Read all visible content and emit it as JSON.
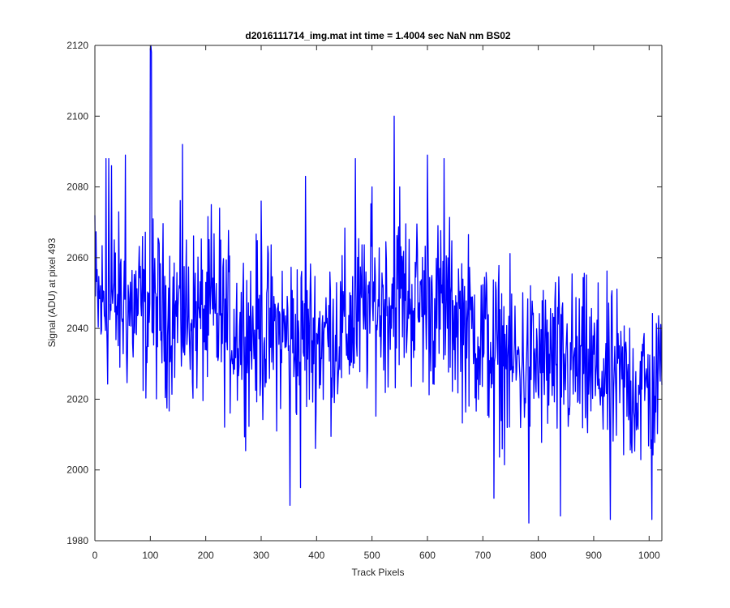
{
  "chart_data": {
    "type": "line",
    "title": "d2016111714_img.mat int time = 1.4004 sec  NaN nm BS02",
    "xlabel": "Track Pixels",
    "ylabel": "Signal (ADU) at pixel 493",
    "xlim": [
      0,
      1023
    ],
    "ylim": [
      1980,
      2120
    ],
    "xticks": [
      0,
      100,
      200,
      300,
      400,
      500,
      600,
      700,
      800,
      900,
      1000
    ],
    "yticks": [
      1980,
      2000,
      2020,
      2040,
      2060,
      2080,
      2100,
      2120
    ],
    "line_color": "#0000ff",
    "series": [
      {
        "name": "signal",
        "n_points": 1024,
        "mean_profile": [
          [
            0,
            2047
          ],
          [
            50,
            2046
          ],
          [
            100,
            2045
          ],
          [
            150,
            2044
          ],
          [
            200,
            2043
          ],
          [
            250,
            2040
          ],
          [
            300,
            2039
          ],
          [
            350,
            2038
          ],
          [
            400,
            2037
          ],
          [
            450,
            2040
          ],
          [
            500,
            2046
          ],
          [
            550,
            2049
          ],
          [
            600,
            2047
          ],
          [
            650,
            2044
          ],
          [
            700,
            2037
          ],
          [
            750,
            2030
          ],
          [
            800,
            2030
          ],
          [
            850,
            2030
          ],
          [
            900,
            2028
          ],
          [
            950,
            2024
          ],
          [
            1000,
            2023
          ],
          [
            1023,
            2025
          ]
        ],
        "noise_amplitude": 12,
        "spikes": [
          [
            0,
            2072
          ],
          [
            20,
            2088
          ],
          [
            25,
            2088
          ],
          [
            30,
            2086
          ],
          [
            55,
            2089
          ],
          [
            100,
            2119
          ],
          [
            101,
            2120
          ],
          [
            102,
            2118
          ],
          [
            158,
            2092
          ],
          [
            210,
            2075
          ],
          [
            225,
            2074
          ],
          [
            300,
            2076
          ],
          [
            380,
            2083
          ],
          [
            470,
            2088
          ],
          [
            500,
            2080
          ],
          [
            540,
            2100
          ],
          [
            550,
            2080
          ],
          [
            600,
            2089
          ],
          [
            630,
            2088
          ],
          [
            352,
            1990
          ],
          [
            371,
            1995
          ],
          [
            720,
            1992
          ],
          [
            783,
            1985
          ],
          [
            840,
            1987
          ],
          [
            930,
            1986
          ],
          [
            1005,
            1986
          ]
        ]
      }
    ]
  }
}
